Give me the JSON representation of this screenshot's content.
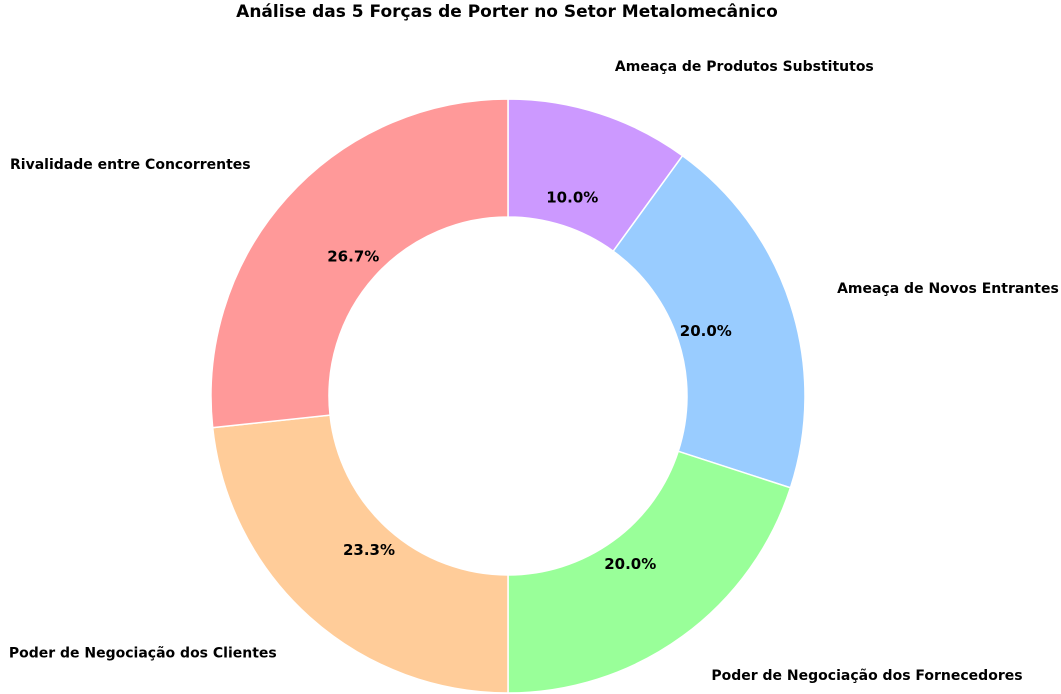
{
  "chart_data": {
    "type": "pie",
    "variant": "donut",
    "title": "Análise das 5 Forças de Porter no Setor Metalomecânico",
    "categories": [
      "Ameaça de Produtos Substitutos",
      "Ameaça de Novos Entrantes",
      "Poder de Negociação dos Fornecedores",
      "Poder de Negociação dos Clientes",
      "Rivalidade entre Concorrentes"
    ],
    "values": [
      10.0,
      20.0,
      20.0,
      23.3,
      26.7
    ],
    "value_labels": [
      "10.0%",
      "20.0%",
      "20.0%",
      "23.3%",
      "26.7%"
    ],
    "colors": [
      "#cc99ff",
      "#99ccff",
      "#99ff99",
      "#ffcc99",
      "#ff9999"
    ],
    "start": "top",
    "direction": "clockwise",
    "legend": "none"
  }
}
